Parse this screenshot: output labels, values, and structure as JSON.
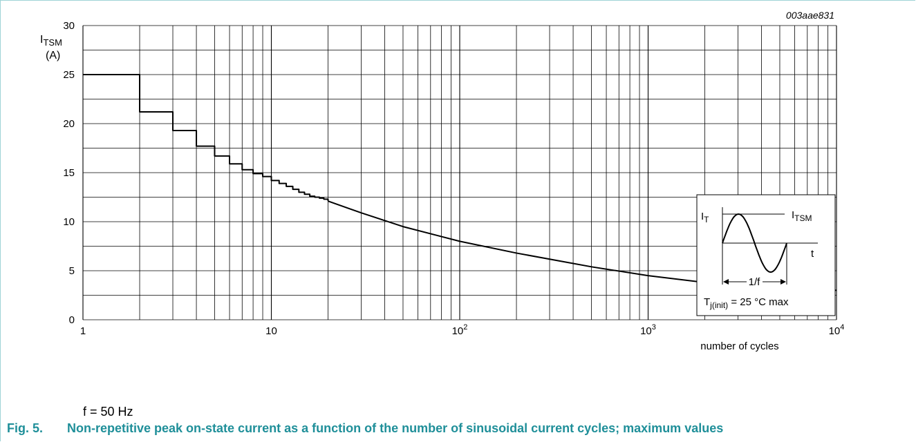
{
  "figure": {
    "code": "003aae831",
    "note": "f = 50 Hz",
    "caption_number": "Fig. 5.",
    "caption_text": "Non-repetitive peak on-state current as a function of the number of sinusoidal current cycles; maximum values"
  },
  "chart_data": {
    "type": "line",
    "xscale": "log",
    "xlim": [
      1,
      10000
    ],
    "ylim": [
      0,
      30
    ],
    "grid": true,
    "ylabel_main": "I",
    "ylabel_sub": "TSM",
    "ylabel_unit": "(A)",
    "xlabel": "number of cycles",
    "yticks": [
      "0",
      "5",
      "10",
      "15",
      "20",
      "25",
      "30"
    ],
    "xticks": [
      {
        "base": "1",
        "exp": ""
      },
      {
        "base": "10",
        "exp": ""
      },
      {
        "base": "10",
        "exp": "2"
      },
      {
        "base": "10",
        "exp": "3"
      },
      {
        "base": "10",
        "exp": "4"
      }
    ],
    "series": [
      {
        "style": "step",
        "x": [
          1,
          2,
          3,
          4,
          5,
          6,
          7,
          8,
          9,
          10,
          11,
          12,
          13,
          14,
          15,
          16,
          17,
          18,
          19,
          20
        ],
        "y": [
          25.0,
          21.2,
          19.3,
          17.7,
          16.7,
          15.9,
          15.3,
          14.9,
          14.6,
          14.2,
          13.9,
          13.6,
          13.3,
          13.0,
          12.8,
          12.6,
          12.5,
          12.4,
          12.3,
          12.1
        ]
      },
      {
        "style": "smooth",
        "x": [
          20,
          30,
          50,
          100,
          200,
          500,
          1000,
          2000,
          5000,
          10000
        ],
        "y": [
          12.1,
          10.9,
          9.5,
          8.0,
          6.8,
          5.4,
          4.5,
          3.8,
          3.3,
          3.0
        ]
      }
    ]
  },
  "inset": {
    "label_it_main": "I",
    "label_it_sub": "T",
    "label_itsm_main": "I",
    "label_itsm_sub": "TSM",
    "label_t": "t",
    "label_period": "1/f",
    "condition_main": "T",
    "condition_sub": "j(init)",
    "condition_rest": " = 25 °C max"
  },
  "colors": {
    "caption": "#1f8f99",
    "frame": "#9ed3d6",
    "grid": "#000000",
    "curve": "#000000"
  }
}
